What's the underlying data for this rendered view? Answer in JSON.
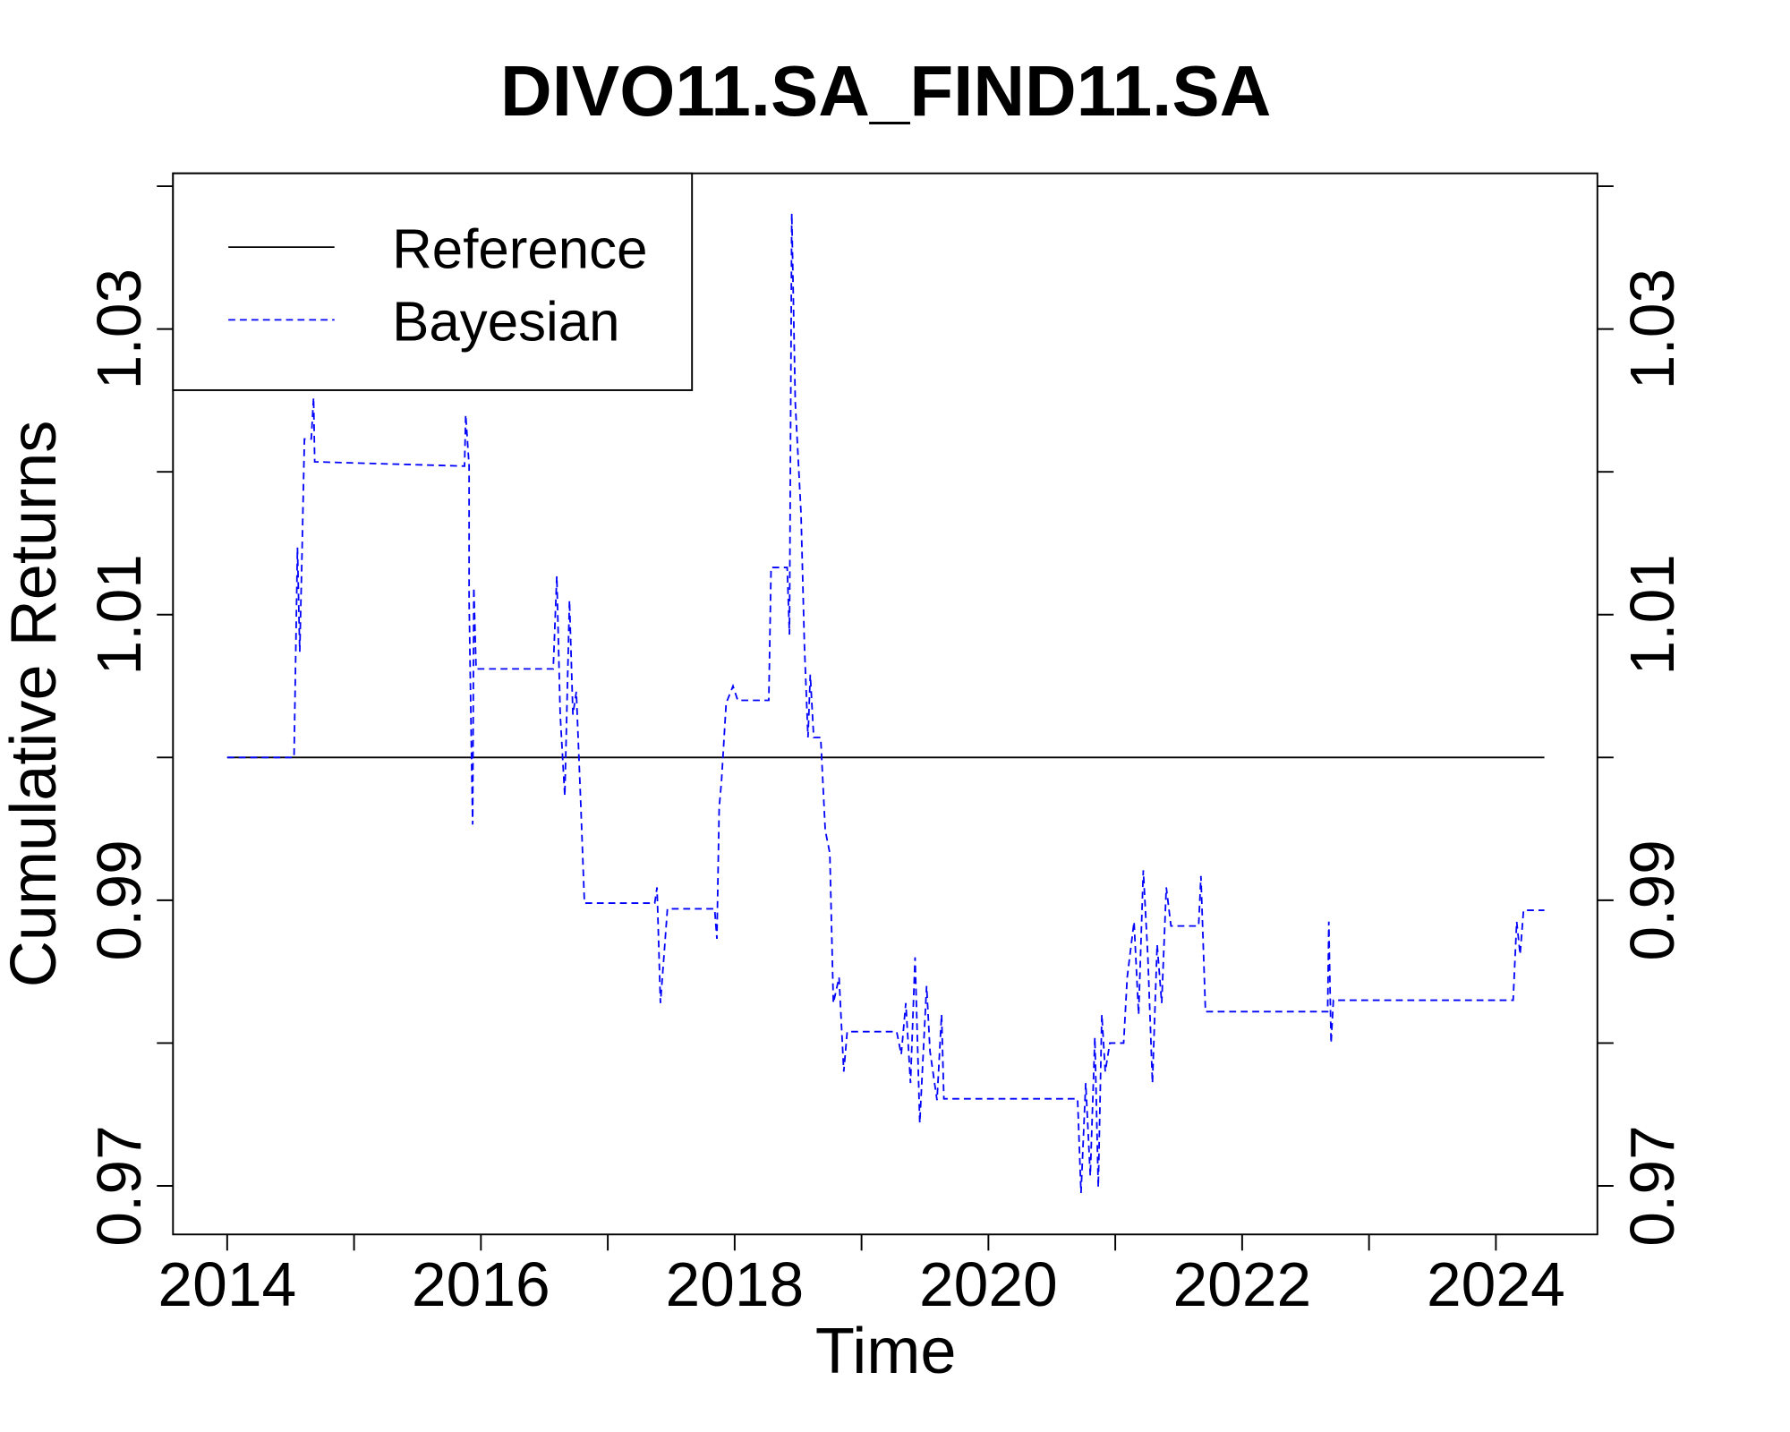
{
  "chart_data": {
    "type": "line",
    "title": "DIVO11.SA_FIND11.SA",
    "x_label": "Time",
    "y_label": "Cumulative Returns",
    "xlim": [
      2013.573,
      2024.8
    ],
    "xticks": [
      2014,
      2016,
      2018,
      2020,
      2022,
      2024
    ],
    "xminor_ticks": [
      2015,
      2017,
      2019,
      2021,
      2023
    ],
    "ylim": [
      0.9666,
      1.0409
    ],
    "yticks": [
      0.97,
      0.99,
      1.01,
      1.03
    ],
    "yminor_ticks": [
      0.98,
      1.0,
      1.02,
      1.04
    ],
    "right_axis": true,
    "legend": "top-left",
    "series": [
      {
        "name": "Reference",
        "color": "#000000",
        "dash": false,
        "x": [
          2014,
          2024.382
        ],
        "values": [
          1.0,
          1.0
        ]
      },
      {
        "name": "Bayesian",
        "color": "#0000ff",
        "dash": true,
        "x": [
          2014,
          2014.527,
          2014.554,
          2014.572,
          2014.59,
          2014.609,
          2014.663,
          2014.681,
          2014.69,
          2015.871,
          2015.88,
          2015.907,
          2015.907,
          2015.926,
          2015.935,
          2015.944,
          2015.962,
          2016.57,
          2016.598,
          2016.625,
          2016.661,
          2016.698,
          2016.725,
          2016.752,
          2016.788,
          2016.816,
          2017.37,
          2017.388,
          2017.415,
          2017.442,
          2017.47,
          2017.842,
          2017.86,
          2017.878,
          2017.896,
          2017.933,
          2017.987,
          2018.024,
          2018.269,
          2018.287,
          2018.414,
          2018.432,
          2018.45,
          2018.478,
          2018.523,
          2018.55,
          2018.578,
          2018.596,
          2018.623,
          2018.678,
          2018.714,
          2018.75,
          2018.778,
          2018.823,
          2018.86,
          2018.887,
          2019.277,
          2019.313,
          2019.349,
          2019.386,
          2019.422,
          2019.459,
          2019.513,
          2019.54,
          2019.595,
          2019.631,
          2019.649,
          2020.703,
          2020.73,
          2020.767,
          2020.803,
          2020.839,
          2020.866,
          2020.894,
          2020.921,
          2020.957,
          2021.066,
          2021.094,
          2021.148,
          2021.184,
          2021.221,
          2021.257,
          2021.293,
          2021.33,
          2021.366,
          2021.402,
          2021.439,
          2021.657,
          2021.675,
          2021.711,
          2022.674,
          2022.683,
          2022.701,
          2022.719,
          2024.136,
          2024.164,
          2024.191,
          2024.218,
          2024.382
        ],
        "values": [
          1.0,
          1.0,
          1.0147,
          1.0074,
          1.0143,
          1.0223,
          1.0223,
          1.0252,
          1.0207,
          1.0204,
          1.024,
          1.0204,
          1.011,
          1.0,
          0.9953,
          1.0119,
          1.0062,
          1.0062,
          1.0127,
          1.003,
          0.9973,
          1.011,
          1.003,
          1.0046,
          0.9965,
          0.9898,
          0.9898,
          0.9909,
          0.9828,
          0.986,
          0.9894,
          0.9894,
          0.9873,
          0.9965,
          0.9983,
          1.0038,
          1.005,
          1.004,
          1.004,
          1.0133,
          1.0133,
          1.0086,
          1.0381,
          1.0248,
          1.0171,
          1.0078,
          1.0014,
          1.0058,
          1.0014,
          1.0014,
          0.9949,
          0.9933,
          0.9828,
          0.9846,
          0.978,
          0.9808,
          0.9808,
          0.9792,
          0.9828,
          0.9772,
          0.986,
          0.9744,
          0.984,
          0.9794,
          0.976,
          0.982,
          0.9761,
          0.9761,
          0.9695,
          0.9772,
          0.9707,
          0.9804,
          0.9699,
          0.982,
          0.978,
          0.98,
          0.98,
          0.9846,
          0.9885,
          0.982,
          0.9921,
          0.986,
          0.9772,
          0.9869,
          0.9828,
          0.9909,
          0.9882,
          0.9882,
          0.9917,
          0.9822,
          0.9822,
          0.9885,
          0.98,
          0.983,
          0.983,
          0.9885,
          0.9862,
          0.9893,
          0.9893
        ]
      }
    ]
  }
}
